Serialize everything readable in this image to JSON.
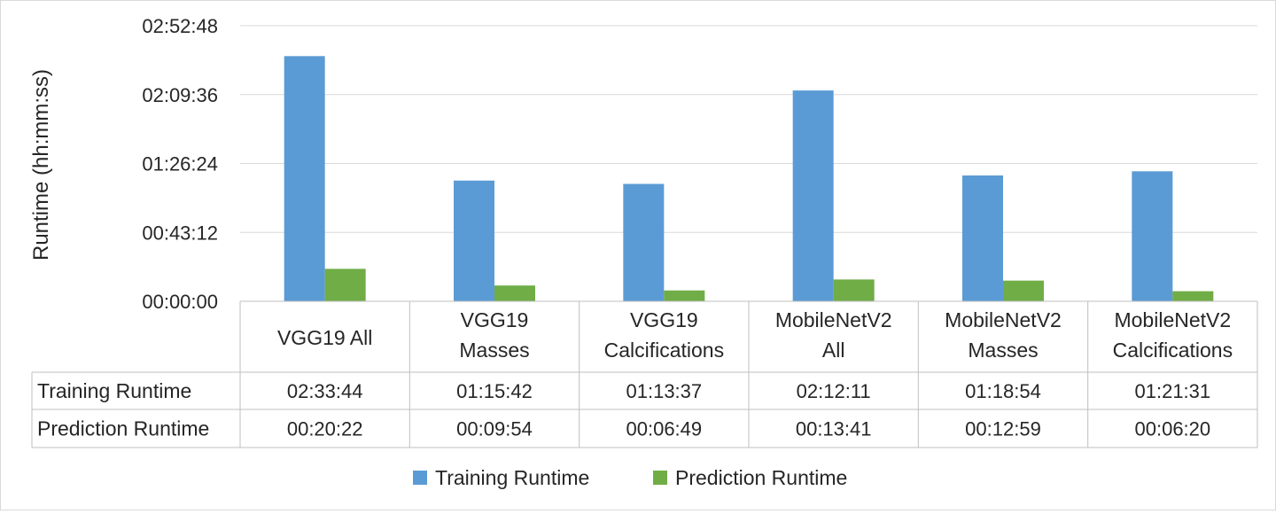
{
  "chart_data": {
    "type": "bar",
    "ylabel": "Runtime (hh:mm:ss)",
    "ylim_seconds": [
      0,
      10368
    ],
    "yticks": [
      "00:00:00",
      "00:43:12",
      "01:26:24",
      "02:09:36",
      "02:52:48"
    ],
    "grid": true,
    "legend_position": "bottom",
    "categories": [
      [
        "VGG19 All"
      ],
      [
        "VGG19",
        "Masses"
      ],
      [
        "VGG19",
        "Calcifications"
      ],
      [
        "MobileNetV2",
        "All"
      ],
      [
        "MobileNetV2",
        "Masses"
      ],
      [
        "MobileNetV2",
        "Calcifications"
      ]
    ],
    "series": [
      {
        "name": "Training Runtime",
        "color": "#5b9bd5",
        "values": [
          "02:33:44",
          "01:15:42",
          "01:13:37",
          "02:12:11",
          "01:18:54",
          "01:21:31"
        ]
      },
      {
        "name": "Prediction Runtime",
        "color": "#70ad47",
        "values": [
          "00:20:22",
          "00:09:54",
          "00:06:49",
          "00:13:41",
          "00:12:59",
          "00:06:20"
        ]
      }
    ]
  }
}
